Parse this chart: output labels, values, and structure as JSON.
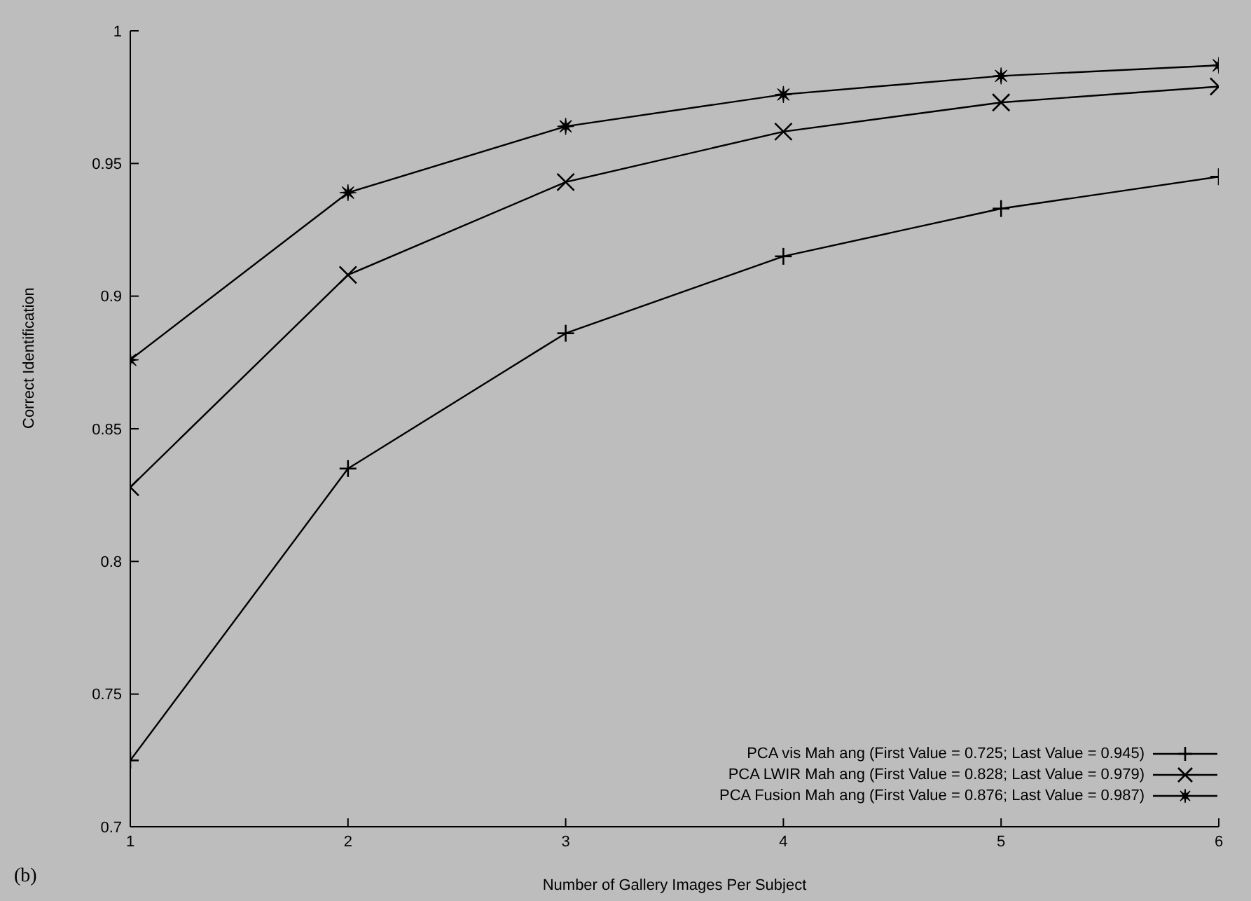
{
  "chart_data": {
    "type": "line",
    "xlabel": "Number of Gallery Images Per Subject",
    "ylabel": "Correct Identification",
    "annotations": [
      "(b)"
    ],
    "x": [
      1,
      2,
      3,
      4,
      5,
      6
    ],
    "xlim": [
      1,
      6
    ],
    "xticks": [
      1,
      2,
      3,
      4,
      5,
      6
    ],
    "ylim": [
      0.7,
      1
    ],
    "yticks": [
      0.7,
      0.75,
      0.8,
      0.85,
      0.9,
      0.95,
      1
    ],
    "grid": false,
    "legend": "bottom right",
    "line_style": "solid",
    "series": [
      {
        "name": "PCA vis Mah ang (First Value = 0.725; Last Value = 0.945)",
        "color": "#000000",
        "marker": "cross",
        "values": [
          0.725,
          0.835,
          0.886,
          0.915,
          0.933,
          0.945
        ]
      },
      {
        "name": "PCA LWIR Mah ang (First Value = 0.828; Last Value = 0.979)",
        "color": "#000000",
        "marker": "x",
        "values": [
          0.828,
          0.908,
          0.943,
          0.962,
          0.973,
          0.979
        ]
      },
      {
        "name": "PCA Fusion Mah ang (First Value = 0.876; Last Value = 0.987)",
        "color": "#000000",
        "marker": "star",
        "values": [
          0.876,
          0.939,
          0.964,
          0.976,
          0.983,
          0.987
        ]
      }
    ]
  }
}
